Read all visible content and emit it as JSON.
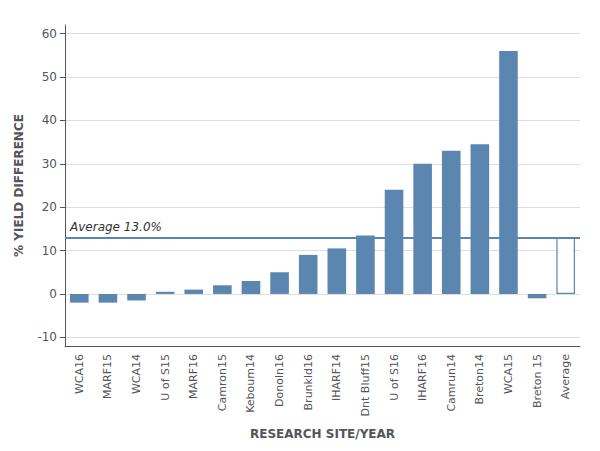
{
  "chart_data": {
    "type": "bar",
    "categories": [
      "WCA16",
      "MARF15",
      "WCA14",
      "U of S15",
      "MARF16",
      "Camron15",
      "Keboum14",
      "Donoln16",
      "Brunkld16",
      "IHARF14",
      "Dnt Bluff15",
      "U of S16",
      "IHARF16",
      "Camrun14",
      "Breton14",
      "WCA15",
      "Breton 15",
      "Average"
    ],
    "values": [
      -2.0,
      -2.0,
      -1.5,
      0.5,
      1.0,
      2.0,
      3.0,
      5.0,
      9.0,
      10.5,
      13.5,
      24.0,
      30.0,
      33.0,
      34.5,
      56.0,
      -1.0,
      13.0
    ],
    "color": "#5b86b0",
    "average_line": 13.0,
    "annotation": "Average 13.0%",
    "xlabel": "RESEARCH SITE/YEAR",
    "ylabel": "% YIELD DIFFERENCE",
    "ylim": [
      -12,
      62
    ],
    "yticks": [
      -10,
      0,
      10,
      20,
      30,
      40,
      50,
      60
    ],
    "grid": true
  }
}
